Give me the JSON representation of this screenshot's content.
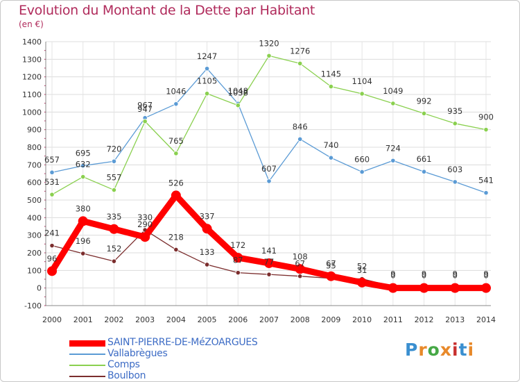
{
  "header": {
    "title": "Evolution du Montant de la Dette par Habitant",
    "subtitle": "(en €)"
  },
  "logo": {
    "text": "Proxiti",
    "colors": [
      "#3a8fd0",
      "#e8892a",
      "#46a846",
      "#e8892a",
      "#c8302f",
      "#3a8fd0",
      "#e8892a"
    ]
  },
  "chart_data": {
    "type": "line",
    "x": [
      "2000",
      "2001",
      "2002",
      "2003",
      "2004",
      "2005",
      "2006",
      "2007",
      "2008",
      "2009",
      "2010",
      "2011",
      "2012",
      "2013",
      "2014"
    ],
    "ylim": [
      -100,
      1400
    ],
    "yticks": [
      -100,
      0,
      100,
      200,
      300,
      400,
      500,
      600,
      700,
      800,
      900,
      1000,
      1100,
      1200,
      1300,
      1400
    ],
    "grid": true,
    "legend_position": "bottom",
    "series": [
      {
        "name": "SAINT-PIERRE-DE-MéZOARGUES",
        "color": "#ff0000",
        "values": [
          96,
          380,
          335,
          290,
          526,
          337,
          172,
          141,
          108,
          67,
          31,
          0,
          0,
          0,
          0
        ],
        "labels": [
          "96",
          "380",
          "335",
          "290",
          "526",
          "337",
          "172",
          "141",
          "108",
          "67",
          "31",
          "0",
          "0",
          "0",
          "0"
        ]
      },
      {
        "name": "Vallabrègues",
        "color": "#5b9bd5",
        "values": [
          657,
          695,
          720,
          967,
          1046,
          1247,
          1048,
          607,
          846,
          740,
          660,
          724,
          661,
          603,
          541
        ],
        "labels": [
          "657",
          "695",
          "720",
          "967",
          "1046",
          "1247",
          "1048",
          "607",
          "846",
          "740",
          "660",
          "724",
          "661",
          "603",
          "541"
        ]
      },
      {
        "name": "Comps",
        "color": "#8ad04f",
        "values": [
          531,
          632,
          557,
          947,
          765,
          1105,
          1038,
          1320,
          1276,
          1145,
          1104,
          1049,
          992,
          935,
          900
        ],
        "labels": [
          "531",
          "632",
          "557",
          "947",
          "765",
          "1105",
          "1038",
          "1320",
          "1276",
          "1145",
          "1104",
          "1049",
          "992",
          "935",
          "900"
        ]
      },
      {
        "name": "Boulbon",
        "color": "#7b2d2d",
        "values": [
          241,
          196,
          152,
          330,
          218,
          133,
          87,
          77,
          67,
          55,
          52,
          9,
          9,
          9,
          9
        ],
        "labels": [
          "241",
          "196",
          "152",
          "330",
          "218",
          "133",
          "87",
          "77",
          "67",
          "55",
          "52",
          "9",
          "9",
          "9",
          "9"
        ]
      }
    ]
  }
}
